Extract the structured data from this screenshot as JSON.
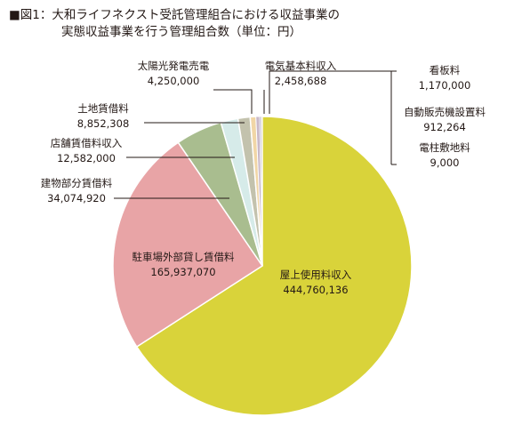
{
  "title": {
    "line1": "■図1：大和ライフネクスト受託管理組合における収益事業の",
    "line2": "実態収益事業を行う管理組合数（単位：円）"
  },
  "colors": {
    "rooftop": "#d9d33a",
    "parking": "#e8a4a6",
    "building": "#a9bd8f",
    "store": "#d6ebe9",
    "land": "#c3c2ad",
    "solar": "#f1d6a6",
    "electric": "#c9b8c8",
    "signboard": "#bfb9cf",
    "vending": "#e0d8c4",
    "pole": "#b8b0c4",
    "leader": "#231815",
    "slice_edge": "#ffffff"
  },
  "chart_data": {
    "type": "pie",
    "unit": "円",
    "slices": [
      {
        "key": "rooftop",
        "label": "屋上使用料収入",
        "value": 444760136,
        "value_text": "444,760,136"
      },
      {
        "key": "parking",
        "label": "駐車場外部貸し賃借料",
        "value": 165937070,
        "value_text": "165,937,070"
      },
      {
        "key": "building",
        "label": "建物部分賃借料",
        "value": 34074920,
        "value_text": "34,074,920"
      },
      {
        "key": "store",
        "label": "店舗賃借料収入",
        "value": 12582000,
        "value_text": "12,582,000"
      },
      {
        "key": "land",
        "label": "土地賃借料",
        "value": 8852308,
        "value_text": "8,852,308"
      },
      {
        "key": "solar",
        "label": "太陽光発電売電",
        "value": 4250000,
        "value_text": "4,250,000"
      },
      {
        "key": "electric",
        "label": "電気基本料収入",
        "value": 2458688,
        "value_text": "2,458,688"
      },
      {
        "key": "signboard",
        "label": "看板料",
        "value": 1170000,
        "value_text": "1,170,000"
      },
      {
        "key": "vending",
        "label": "自動販売機設置料",
        "value": 912264,
        "value_text": "912,264"
      },
      {
        "key": "pole",
        "label": "電柱敷地料",
        "value": 9000,
        "value_text": "9,000"
      }
    ]
  }
}
